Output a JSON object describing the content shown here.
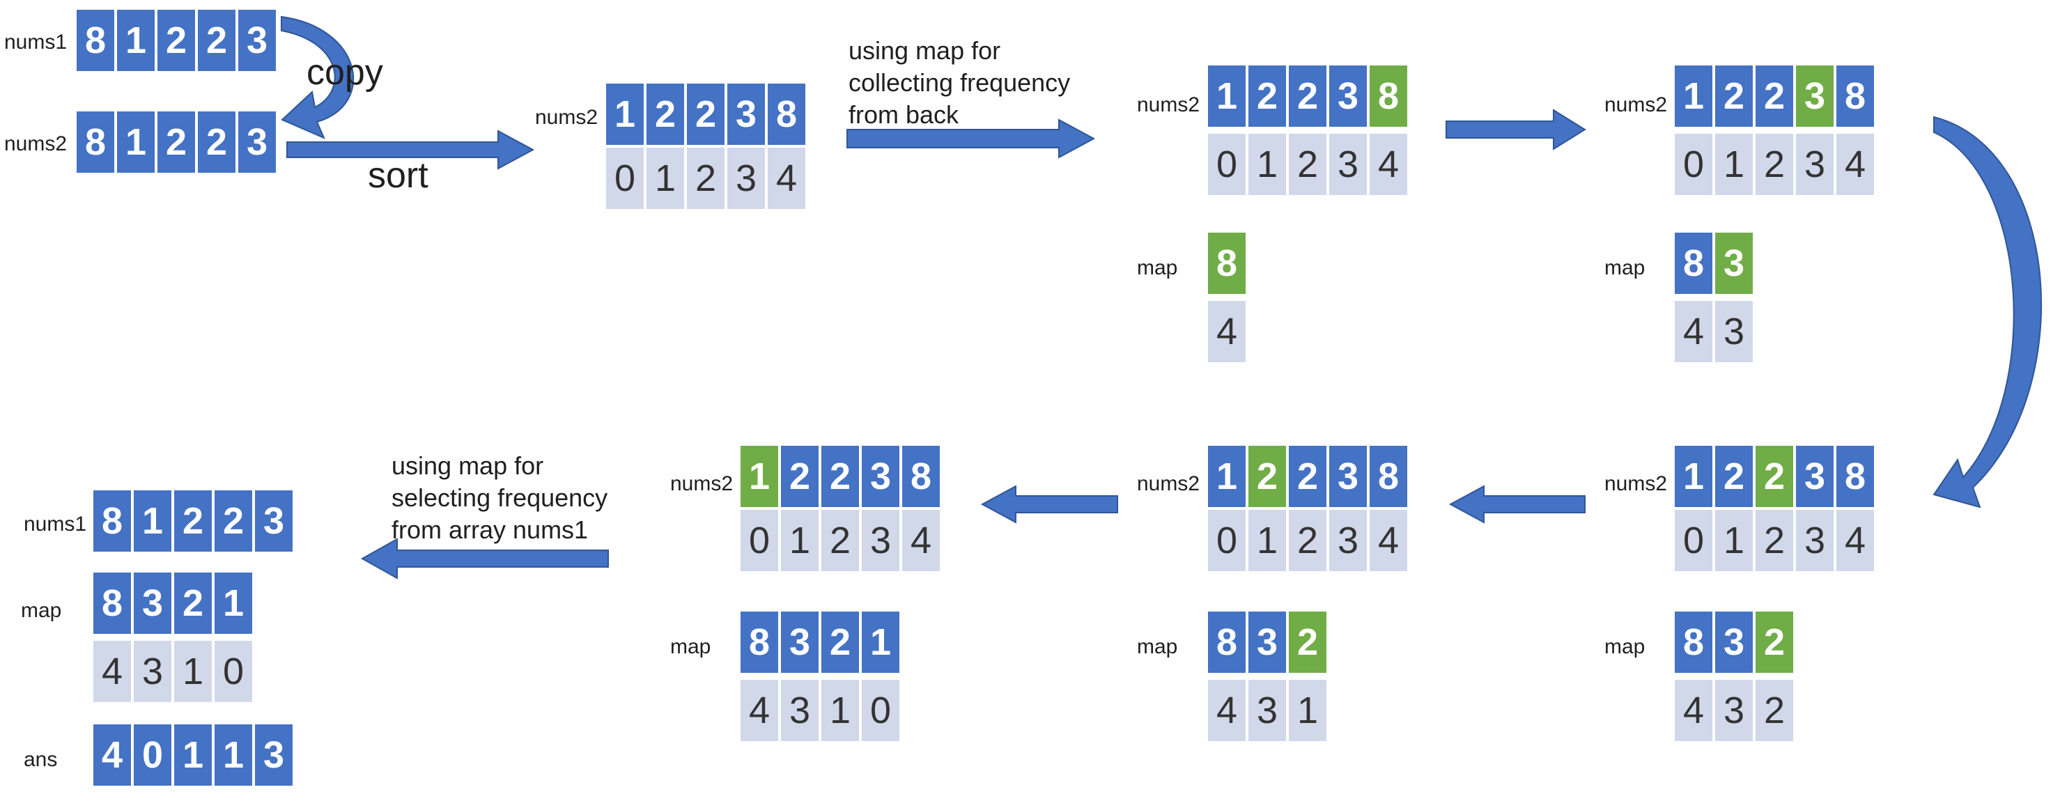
{
  "captions": {
    "copy": "copy",
    "sort": "sort",
    "collect": [
      "using map for",
      "collecting frequency",
      "from back"
    ],
    "select": [
      "using map for",
      "selecting frequency",
      "from array nums1"
    ]
  },
  "colors": {
    "blue": "#4472c4",
    "green": "#70ad47",
    "light": "#d1d8ea"
  },
  "groups": [
    {
      "label": "nums1",
      "top": [
        "8",
        "1",
        "2",
        "2",
        "3"
      ]
    },
    {
      "label": "nums2",
      "top": [
        "8",
        "1",
        "2",
        "2",
        "3"
      ]
    },
    {
      "label": "nums2",
      "top": [
        "1",
        "2",
        "2",
        "3",
        "8"
      ],
      "bottom": [
        "0",
        "1",
        "2",
        "3",
        "4"
      ]
    },
    {
      "label": "nums2",
      "top": [
        "1",
        "2",
        "2",
        "3",
        "8"
      ],
      "bottom": [
        "0",
        "1",
        "2",
        "3",
        "4"
      ],
      "hl": [
        4
      ]
    },
    {
      "label": "map",
      "top": [
        "8"
      ],
      "bottom": [
        "4"
      ],
      "hl": [
        0
      ]
    },
    {
      "label": "nums2",
      "top": [
        "1",
        "2",
        "2",
        "3",
        "8"
      ],
      "bottom": [
        "0",
        "1",
        "2",
        "3",
        "4"
      ],
      "hl": [
        3
      ]
    },
    {
      "label": "map",
      "top": [
        "8",
        "3"
      ],
      "bottom": [
        "4",
        "3"
      ],
      "hl": [
        1
      ]
    },
    {
      "label": "nums2",
      "top": [
        "1",
        "2",
        "2",
        "3",
        "8"
      ],
      "bottom": [
        "0",
        "1",
        "2",
        "3",
        "4"
      ],
      "hl": [
        2
      ]
    },
    {
      "label": "map",
      "top": [
        "8",
        "3",
        "2"
      ],
      "bottom": [
        "4",
        "3",
        "2"
      ],
      "hl": [
        2
      ]
    },
    {
      "label": "nums2",
      "top": [
        "1",
        "2",
        "2",
        "3",
        "8"
      ],
      "bottom": [
        "0",
        "1",
        "2",
        "3",
        "4"
      ],
      "hl": [
        1
      ]
    },
    {
      "label": "map",
      "top": [
        "8",
        "3",
        "2"
      ],
      "bottom": [
        "4",
        "3",
        "1"
      ],
      "hl": [
        2
      ]
    },
    {
      "label": "nums2",
      "top": [
        "1",
        "2",
        "2",
        "3",
        "8"
      ],
      "bottom": [
        "0",
        "1",
        "2",
        "3",
        "4"
      ],
      "hl": [
        0
      ]
    },
    {
      "label": "map",
      "top": [
        "8",
        "3",
        "2",
        "1"
      ],
      "bottom": [
        "4",
        "3",
        "1",
        "0"
      ]
    },
    {
      "label": "nums1",
      "top": [
        "8",
        "1",
        "2",
        "2",
        "3"
      ]
    },
    {
      "label": "map",
      "top": [
        "8",
        "3",
        "2",
        "1"
      ],
      "bottom": [
        "4",
        "3",
        "1",
        "0"
      ]
    },
    {
      "label": "ans",
      "top": [
        "4",
        "0",
        "1",
        "1",
        "3"
      ]
    }
  ]
}
